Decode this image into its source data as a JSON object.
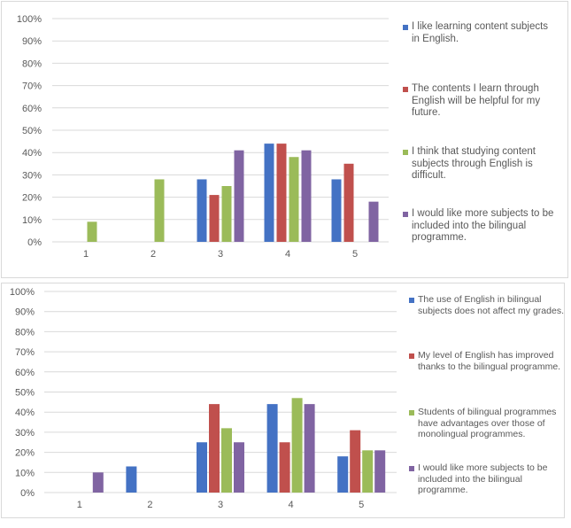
{
  "colors": {
    "s1": "#4472C4",
    "s2": "#C0504D",
    "s3": "#9BBB59",
    "s4": "#8064A2",
    "grid": "#d9d9d9",
    "text": "#595959"
  },
  "chart_data": [
    {
      "type": "bar",
      "categories": [
        "1",
        "2",
        "3",
        "4",
        "5"
      ],
      "y_ticks": [
        "0%",
        "10%",
        "20%",
        "30%",
        "40%",
        "50%",
        "60%",
        "70%",
        "80%",
        "90%",
        "100%"
      ],
      "ylim": [
        0,
        100
      ],
      "grid": true,
      "legend_position": "right",
      "series": [
        {
          "name": "I like learning content subjects in English.",
          "values": [
            0,
            0,
            28,
            44,
            28
          ]
        },
        {
          "name": "The contents I learn through English will be helpful for my future.",
          "values": [
            0,
            0,
            21,
            44,
            35
          ]
        },
        {
          "name": "I think that studying content subjects through English is difficult.",
          "values": [
            9,
            28,
            25,
            38,
            0
          ]
        },
        {
          "name": "I would like more subjects to be included into the bilingual programme.",
          "values": [
            0,
            0,
            41,
            41,
            18
          ]
        }
      ]
    },
    {
      "type": "bar",
      "categories": [
        "1",
        "2",
        "3",
        "4",
        "5"
      ],
      "y_ticks": [
        "0%",
        "10%",
        "20%",
        "30%",
        "40%",
        "50%",
        "60%",
        "70%",
        "80%",
        "90%",
        "100%"
      ],
      "ylim": [
        0,
        100
      ],
      "grid": true,
      "legend_position": "right",
      "series": [
        {
          "name": "The use of English in bilingual subjects does not affect my grades.",
          "values": [
            0,
            13,
            25,
            44,
            18
          ]
        },
        {
          "name": "My level of English has improved thanks to the bilingual programme.",
          "values": [
            0,
            0,
            44,
            25,
            31
          ]
        },
        {
          "name": "Students of bilingual programmes have advantages over those of monolingual programmes.",
          "values": [
            0,
            0,
            32,
            47,
            21
          ]
        },
        {
          "name": "I would like more subjects to be included into the bilingual programme.",
          "values": [
            10,
            0,
            25,
            44,
            21
          ]
        }
      ]
    }
  ]
}
